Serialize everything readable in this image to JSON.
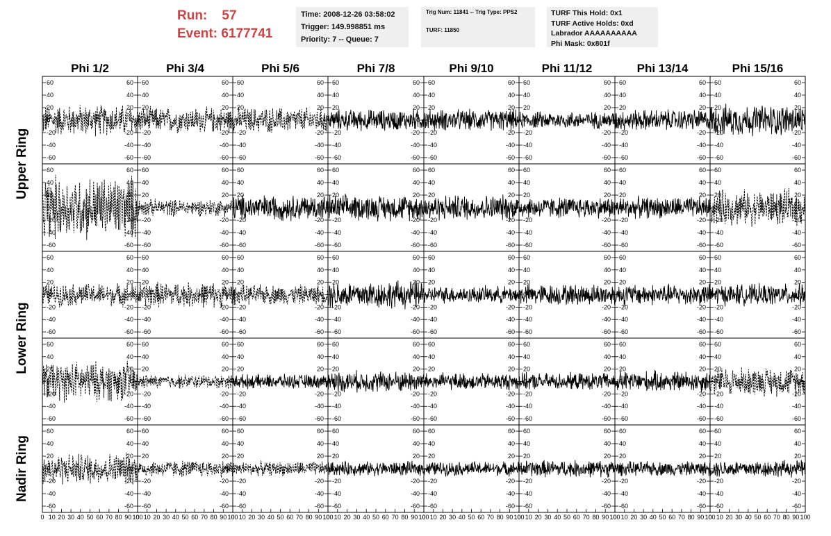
{
  "run_info": {
    "run_label": "Run:",
    "run_value": "57",
    "event_label": "Event:",
    "event_value": "6177741"
  },
  "time_box": {
    "time": "Time: 2008-12-26 03:58:02",
    "trigger": "Trigger: 149.998851 ms",
    "priority": "Priority: 7 -- Queue: 7"
  },
  "trig_box": {
    "trig": "Trig Num: 11841 -- Trig Type: PPS2",
    "turf": "TURF: 11850"
  },
  "turf_box": {
    "hold": "TURF This Hold: 0x1",
    "active": "TURF Active Holds: 0xd",
    "labrador": "Labrador AAAAAAAAAA",
    "mask": "Phi Mask: 0x801f"
  },
  "colors": {
    "run_text": "#cc4444",
    "box_bg": "#efefef",
    "trace": "#000000"
  },
  "chart_data": {
    "type": "line",
    "columns": [
      "Phi 1/2",
      "Phi 3/4",
      "Phi 5/6",
      "Phi 7/8",
      "Phi 9/10",
      "Phi 11/12",
      "Phi 13/14",
      "Phi 15/16"
    ],
    "ring_labels": [
      "Upper Ring",
      "Lower Ring",
      "Nadir Ring"
    ],
    "rows": 5,
    "xlim": [
      0,
      100
    ],
    "ylim": [
      -70,
      70
    ],
    "x_tick_labels": [
      "0",
      "10",
      "20",
      "30",
      "40",
      "50",
      "60",
      "70",
      "80",
      "90",
      "100"
    ],
    "y_tick_labels": [
      "60",
      "40",
      "20",
      "0",
      "-20",
      "-40",
      "-60"
    ],
    "grid": false,
    "dashed_panels": [
      [
        1,
        1,
        1,
        0,
        0,
        0,
        0,
        0
      ],
      [
        1,
        1,
        0,
        0,
        0,
        0,
        0,
        1
      ],
      [
        1,
        1,
        1,
        0,
        0,
        0,
        0,
        0
      ],
      [
        1,
        1,
        0,
        0,
        0,
        0,
        0,
        1
      ],
      [
        1,
        1,
        1,
        0,
        0,
        0,
        0,
        0
      ]
    ],
    "amplitude": [
      [
        22,
        18,
        18,
        15,
        15,
        12,
        15,
        22
      ],
      [
        45,
        12,
        18,
        18,
        18,
        15,
        15,
        25
      ],
      [
        16,
        18,
        14,
        20,
        12,
        15,
        15,
        15
      ],
      [
        28,
        10,
        10,
        15,
        12,
        12,
        15,
        20
      ],
      [
        22,
        12,
        10,
        10,
        10,
        12,
        10,
        12
      ]
    ]
  }
}
